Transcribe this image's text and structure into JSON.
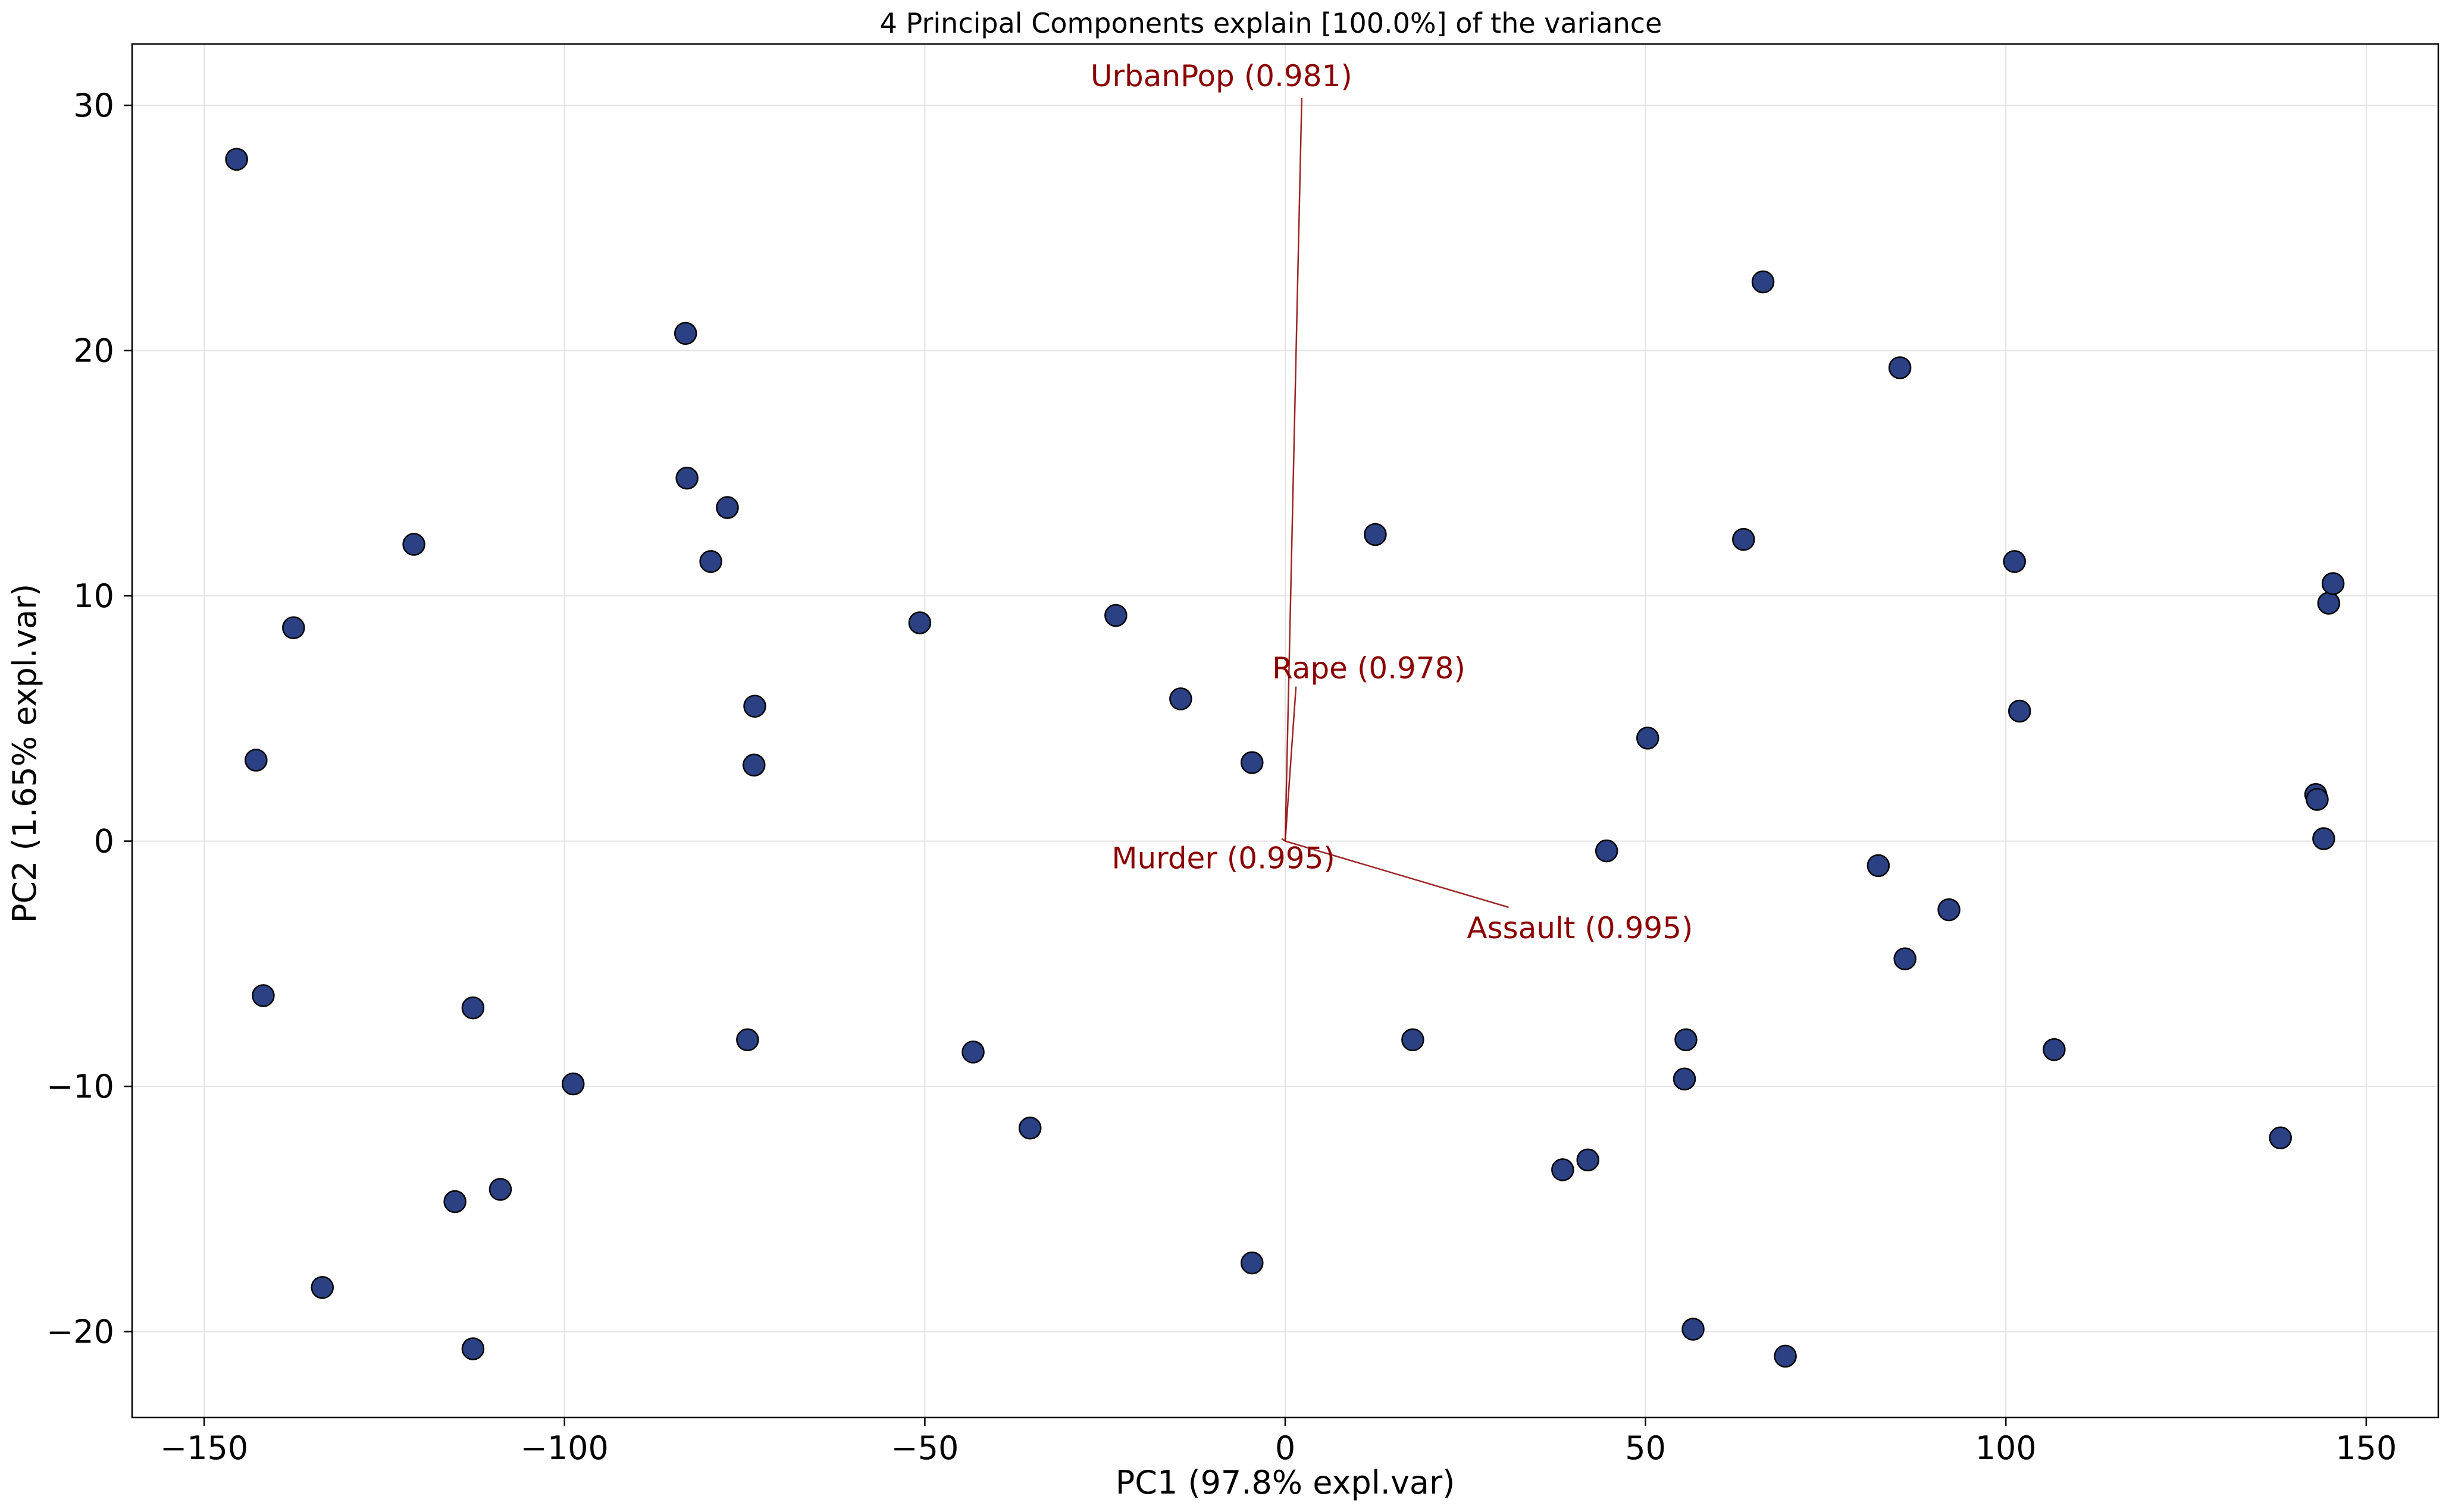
{
  "chart_data": {
    "type": "scatter",
    "title": "4 Principal Components explain [100.0%] of the variance",
    "xlabel": "PC1 (97.8% expl.var)",
    "ylabel": "PC2 (1.65% expl.var)",
    "xlim": [
      -160,
      160
    ],
    "ylim": [
      -23.5,
      32.5
    ],
    "xticks": [
      -150,
      -100,
      -50,
      0,
      50,
      100,
      150
    ],
    "xtick_labels": [
      "−150",
      "−100",
      "−50",
      "0",
      "50",
      "100",
      "150"
    ],
    "yticks": [
      -20,
      -10,
      0,
      10,
      20,
      30
    ],
    "ytick_labels": [
      "−20",
      "−10",
      "0",
      "10",
      "20",
      "30"
    ],
    "grid": true,
    "marker_color": "#2b4183",
    "loading_color": "#8b0000",
    "points": [
      {
        "x": -145.5,
        "y": 27.8
      },
      {
        "x": -120.9,
        "y": 12.1
      },
      {
        "x": -137.6,
        "y": 8.7
      },
      {
        "x": -142.8,
        "y": 3.3
      },
      {
        "x": -141.8,
        "y": -6.3
      },
      {
        "x": -133.6,
        "y": -18.2
      },
      {
        "x": -112.7,
        "y": -6.8
      },
      {
        "x": -115.2,
        "y": -14.7
      },
      {
        "x": -108.9,
        "y": -14.2
      },
      {
        "x": -112.7,
        "y": -20.7
      },
      {
        "x": -98.8,
        "y": -9.9
      },
      {
        "x": -83.2,
        "y": 20.7
      },
      {
        "x": -83.0,
        "y": 14.8
      },
      {
        "x": -77.4,
        "y": 13.6
      },
      {
        "x": -79.7,
        "y": 11.4
      },
      {
        "x": -73.6,
        "y": 5.5
      },
      {
        "x": -73.7,
        "y": 3.1
      },
      {
        "x": -74.6,
        "y": -8.1
      },
      {
        "x": -50.7,
        "y": 8.9
      },
      {
        "x": -43.3,
        "y": -8.6
      },
      {
        "x": -35.4,
        "y": -11.7
      },
      {
        "x": -23.5,
        "y": 9.2
      },
      {
        "x": -14.5,
        "y": 5.8
      },
      {
        "x": -4.6,
        "y": 3.2
      },
      {
        "x": -4.6,
        "y": -17.2
      },
      {
        "x": 12.5,
        "y": 12.5
      },
      {
        "x": 17.7,
        "y": -8.1
      },
      {
        "x": 38.5,
        "y": -13.4
      },
      {
        "x": 42.0,
        "y": -13.0
      },
      {
        "x": 44.6,
        "y": -0.4
      },
      {
        "x": 50.3,
        "y": 4.2
      },
      {
        "x": 55.4,
        "y": -9.7
      },
      {
        "x": 55.6,
        "y": -8.1
      },
      {
        "x": 56.6,
        "y": -19.9
      },
      {
        "x": 63.6,
        "y": 12.3
      },
      {
        "x": 66.3,
        "y": 22.8
      },
      {
        "x": 69.4,
        "y": -21.0
      },
      {
        "x": 82.3,
        "y": -1.0
      },
      {
        "x": 85.3,
        "y": 19.3
      },
      {
        "x": 86.0,
        "y": -4.8
      },
      {
        "x": 92.1,
        "y": -2.8
      },
      {
        "x": 101.2,
        "y": 11.4
      },
      {
        "x": 101.9,
        "y": 5.3
      },
      {
        "x": 106.7,
        "y": -8.5
      },
      {
        "x": 138.1,
        "y": -12.1
      },
      {
        "x": 143.0,
        "y": 1.9
      },
      {
        "x": 143.2,
        "y": 1.7
      },
      {
        "x": 144.1,
        "y": 0.1
      },
      {
        "x": 144.8,
        "y": 9.7
      },
      {
        "x": 145.4,
        "y": 10.5
      }
    ],
    "loadings": [
      {
        "label": "UrbanPop (0.981)",
        "x": 2.3,
        "y": 30.3
      },
      {
        "label": "Rape (0.978)",
        "x": 1.5,
        "y": 6.3
      },
      {
        "label": "Murder (0.995)",
        "x": -0.5,
        "y": 0.1
      },
      {
        "label": "Assault (0.995)",
        "x": 31.0,
        "y": -2.7
      }
    ]
  }
}
